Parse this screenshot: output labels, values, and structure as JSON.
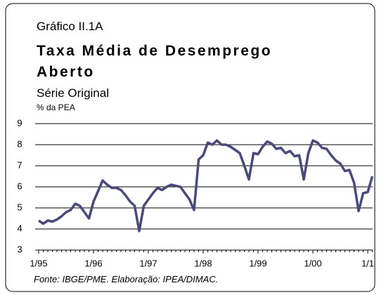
{
  "chart_data": {
    "type": "line",
    "label": "Gráfico II.1A",
    "title": "Taxa Média de Desemprego Aberto",
    "subtitle": "Série Original",
    "y_label": "% da PEA",
    "source": "Fonte: IBGE/PME. Elaboração: IPEA/DIMAC.",
    "categories": [
      "1/95",
      null,
      null,
      null,
      null,
      null,
      null,
      null,
      null,
      null,
      null,
      null,
      "1/96",
      null,
      null,
      null,
      null,
      null,
      null,
      null,
      null,
      null,
      null,
      null,
      "1/97",
      null,
      null,
      null,
      null,
      null,
      null,
      null,
      null,
      null,
      null,
      null,
      "1/98",
      null,
      null,
      null,
      null,
      null,
      null,
      null,
      null,
      null,
      null,
      null,
      "1/99",
      null,
      null,
      null,
      null,
      null,
      null,
      null,
      null,
      null,
      null,
      null,
      "1/00",
      null,
      null,
      null,
      null,
      null,
      null,
      null,
      null,
      null,
      null,
      null,
      "1/1",
      null
    ],
    "series": [
      {
        "color": "#4a4a7a",
        "values": [
          4.4,
          4.25,
          4.4,
          4.35,
          4.45,
          4.6,
          4.8,
          4.9,
          5.2,
          5.1,
          4.8,
          4.5,
          5.3,
          5.8,
          6.3,
          6.1,
          5.95,
          5.95,
          5.85,
          5.6,
          5.3,
          5.1,
          3.9,
          5.1,
          5.4,
          5.7,
          5.95,
          5.85,
          6.0,
          6.1,
          6.05,
          6.0,
          5.7,
          5.4,
          4.9,
          7.3,
          7.5,
          8.1,
          8.0,
          8.2,
          8.0,
          8.0,
          7.9,
          7.75,
          7.6,
          7.0,
          6.35,
          7.6,
          7.55,
          7.9,
          8.15,
          8.05,
          7.8,
          7.85,
          7.6,
          7.7,
          7.45,
          7.5,
          6.35,
          7.6,
          8.2,
          8.1,
          7.85,
          7.8,
          7.5,
          7.25,
          7.1,
          6.75,
          6.8,
          6.2,
          4.85,
          5.7,
          5.75,
          6.5
        ]
      }
    ],
    "ylim": [
      3,
      9
    ],
    "yticks": [
      3,
      4,
      5,
      6,
      7,
      8,
      9
    ],
    "grid": true
  }
}
